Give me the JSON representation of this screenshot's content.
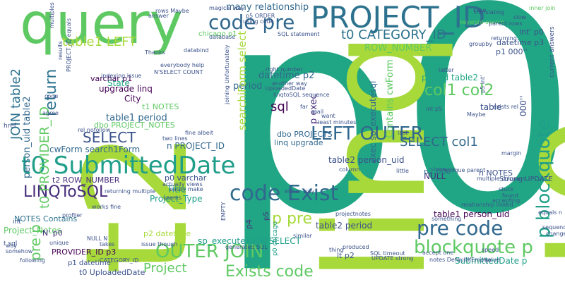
{
  "palette": {
    "green_light": "#a7d93b",
    "green": "#5ec962",
    "teal": "#21a685",
    "teal_dark": "#1f9e89",
    "blue": "#2c728e",
    "blue_dark": "#31688e",
    "indigo": "#3b528b",
    "purple": "#472d7b",
    "purple_dark": "#440154"
  },
  "words": [
    {
      "text": "p0",
      "color": "#21a685"
    },
    {
      "text": "t2",
      "color": "#a7d93b"
    },
    {
      "text": "linq",
      "color": "#a7d93b"
    },
    {
      "text": "t0",
      "color": "#a7d93b"
    },
    {
      "text": "query",
      "color": "#5ec962"
    },
    {
      "text": "PROJECT_ID",
      "color": "#2c728e"
    },
    {
      "text": "code pre",
      "color": "#31688e"
    },
    {
      "text": "t0 SubmittedDate",
      "color": "#1f9e89"
    },
    {
      "text": "code Exist",
      "color": "#31688e"
    },
    {
      "text": "LEFT OUTER",
      "color": "#31688e"
    },
    {
      "text": "OUTER JOIN",
      "color": "#5ec962"
    },
    {
      "text": "p blockquote",
      "color": "#1f9e89"
    },
    {
      "text": "pre code",
      "color": "#31688e"
    },
    {
      "text": "blockquote p",
      "color": "#5ec962"
    },
    {
      "text": "Exists code",
      "color": "#5ec962"
    },
    {
      "text": "col1 col2",
      "color": "#5ec962"
    },
    {
      "text": "p pre",
      "color": "#a7d93b"
    },
    {
      "text": "LINQToSQL",
      "color": "#472d7b"
    },
    {
      "text": "t0 CATEGORY_ID",
      "color": "#2c728e"
    },
    {
      "text": "SELECT",
      "color": "#3b528b"
    },
    {
      "text": "SELECT col1",
      "color": "#31688e"
    },
    {
      "text": "return",
      "color": "#2c728e"
    },
    {
      "text": "t0 PROVIDER_ID",
      "color": "#5ec962"
    },
    {
      "text": "JOIN table2",
      "color": "#2c728e"
    },
    {
      "text": "pre p",
      "color": "#5ec962"
    },
    {
      "text": "table1 LEFT",
      "color": "#a7d93b"
    },
    {
      "text": "Project",
      "color": "#5ec962"
    },
    {
      "text": "sql",
      "color": "#440154"
    },
    {
      "text": "City",
      "color": "#440154"
    },
    {
      "text": "table1 period",
      "color": "#31688e"
    },
    {
      "text": "State",
      "color": "#21a685"
    },
    {
      "text": "period table2",
      "color": "#21a685"
    },
    {
      "text": "cwForm search1Form",
      "color": "#31688e"
    },
    {
      "text": "n PROJECT_ID",
      "color": "#31688e"
    },
    {
      "text": "table2 person_uid",
      "color": "#3b528b"
    },
    {
      "text": "table1 person_uid",
      "color": "#440154"
    },
    {
      "text": "table2 period",
      "color": "#3b528b"
    },
    {
      "text": "SubmittedDate p",
      "color": "#1f9e89"
    },
    {
      "text": "sp_executesql N'SELECT",
      "color": "#1f9e89"
    },
    {
      "text": "Title",
      "color": "#1f9e89"
    },
    {
      "text": "Project_Type",
      "color": "#1f9e89"
    },
    {
      "text": "Project_Notes",
      "color": "#5ec962"
    },
    {
      "text": "NOTES Contains",
      "color": "#2c728e"
    },
    {
      "text": "PROVIDER_ID p3",
      "color": "#440154"
    },
    {
      "text": "dbo PROJECTS",
      "color": "#31688e"
    },
    {
      "text": "linq upgrade",
      "color": "#31688e"
    },
    {
      "text": "many relationship",
      "color": "#31688e"
    },
    {
      "text": "datetime p2",
      "color": "#31688e"
    },
    {
      "text": "period",
      "color": "#31688e"
    },
    {
      "text": "upgrade linq",
      "color": "#440154"
    },
    {
      "text": "varchar p1",
      "color": "#440154"
    },
    {
      "text": "dbo PROJECT_NOTES",
      "color": "#5ec962"
    },
    {
      "text": "t1 NOTES",
      "color": "#5ec962"
    },
    {
      "text": "p exec",
      "color": "#472d7b"
    },
    {
      "text": "exec sp_executesql",
      "color": "#31688e"
    },
    {
      "text": "Contains cwForm",
      "color": "#5ec962"
    },
    {
      "text": "ROW_NUMBER",
      "color": "#5ec962"
    },
    {
      "text": "person_uid table2",
      "color": "#31688e"
    },
    {
      "text": "searchiForm select",
      "color": "#a7d93b"
    },
    {
      "text": "p0 varchar",
      "color": "#3b528b"
    },
    {
      "text": "p1 datetime",
      "color": "#3b528b"
    },
    {
      "text": "t0 UploadedDate",
      "color": "#3b528b"
    },
    {
      "text": "p2 datetime",
      "color": "#a7d93b"
    },
    {
      "text": "t2 ROW_NUMBER",
      "color": "#472d7b"
    },
    {
      "text": "NULL",
      "color": "#472d7b"
    },
    {
      "text": "n NOTES",
      "color": "#3b528b"
    },
    {
      "text": "Strong UPDATE",
      "color": "#3b528b"
    },
    {
      "text": "p1 000''",
      "color": "#3b528b"
    },
    {
      "text": "datetime p3",
      "color": "#3b528b"
    },
    {
      "text": "int' p0",
      "color": "#3b528b"
    },
    {
      "text": "p2 000''",
      "color": "#31688e"
    },
    {
      "text": "N' p0",
      "color": "#472d7b"
    },
    {
      "text": "lt p2",
      "color": "#3b528b"
    },
    {
      "text": "p4",
      "color": "#472d7b"
    },
    {
      "text": "p5",
      "color": "#472d7b"
    },
    {
      "text": "p0 chicago",
      "color": "#1f9e89"
    },
    {
      "text": "chicago p1",
      "color": "#5ec962"
    },
    {
      "text": "keyword search",
      "color": "#5ec962"
    },
    {
      "text": "inner join",
      "color": "#5ec962"
    },
    {
      "text": "000''",
      "color": "#3b528b"
    },
    {
      "text": "current answers",
      "color": "#3b528b"
    },
    {
      "text": "relationship linked",
      "color": "#3b528b"
    },
    {
      "text": "column",
      "color": "#3b528b"
    },
    {
      "text": "table",
      "color": "#3b528b"
    },
    {
      "text": "rel nofollow",
      "color": "#3b528b"
    },
    {
      "text": "margin",
      "color": "#3b528b"
    },
    {
      "text": "code",
      "color": "#3b528b"
    },
    {
      "text": "agree",
      "color": "#3b528b"
    },
    {
      "text": "href",
      "color": "#3b528b"
    },
    {
      "text": "int",
      "color": "#3b528b"
    },
    {
      "text": "t sql",
      "color": "#3b528b"
    },
    {
      "text": "change",
      "color": "#3b528b"
    },
    {
      "text": "p5 ORDER",
      "color": "#3b528b"
    },
    {
      "text": "magical way",
      "color": "#3b528b"
    },
    {
      "text": "using code",
      "color": "#3b528b"
    },
    {
      "text": "SQL statement",
      "color": "#3b528b"
    },
    {
      "text": "database",
      "color": "#3b528b"
    },
    {
      "text": "databind",
      "color": "#3b528b"
    },
    {
      "text": "Thanks",
      "color": "#3b528b"
    },
    {
      "text": "everybody help",
      "color": "#3b528b"
    },
    {
      "text": "N'SELECT COUNT",
      "color": "#3b528b"
    },
    {
      "text": "right number",
      "color": "#3b528b"
    },
    {
      "text": "UploadedDate",
      "color": "#3b528b"
    },
    {
      "text": "another way",
      "color": "#3b528b"
    },
    {
      "text": "linqtoSQL sequence",
      "color": "#3b528b"
    },
    {
      "text": "far",
      "color": "#3b528b"
    },
    {
      "text": "mail",
      "color": "#3b528b"
    },
    {
      "text": "want",
      "color": "#3b528b"
    },
    {
      "text": "least minutes",
      "color": "#3b528b"
    },
    {
      "text": "last",
      "color": "#3b528b"
    },
    {
      "text": "indexing issue",
      "color": "#3b528b"
    },
    {
      "text": "latter",
      "color": "#3b528b"
    },
    {
      "text": "exists rel",
      "color": "#3b528b"
    },
    {
      "text": "int p5",
      "color": "#3b528b"
    },
    {
      "text": "Maybe",
      "color": "#3b528b"
    },
    {
      "text": "fine albeit",
      "color": "#3b528b"
    },
    {
      "text": "two lines",
      "color": "#3b528b"
    },
    {
      "text": "stuck",
      "color": "#3b528b"
    },
    {
      "text": "accepting",
      "color": "#3b528b"
    },
    {
      "text": "found",
      "color": "#3b528b"
    },
    {
      "text": "multiple columns",
      "color": "#3b528b"
    },
    {
      "text": "unique parent",
      "color": "#3b528b"
    },
    {
      "text": "little",
      "color": "#3b528b"
    },
    {
      "text": "actually views",
      "color": "#3b528b"
    },
    {
      "text": "easily make",
      "color": "#3b528b"
    },
    {
      "text": "seems",
      "color": "#3b528b"
    },
    {
      "text": "returning multiple",
      "color": "#3b528b"
    },
    {
      "text": "profiler",
      "color": "#3b528b"
    },
    {
      "text": "either way",
      "color": "#3b528b"
    },
    {
      "text": "similar",
      "color": "#3b528b"
    },
    {
      "text": "thing",
      "color": "#3b528b"
    },
    {
      "text": "produced",
      "color": "#3b528b"
    },
    {
      "text": "takes",
      "color": "#3b528b"
    },
    {
      "text": "unique",
      "color": "#3b528b"
    },
    {
      "text": "issue though",
      "color": "#3b528b"
    },
    {
      "text": "generated SQL",
      "color": "#3b528b"
    },
    {
      "text": "SQL timeout",
      "color": "#3b528b"
    },
    {
      "text": "UPDATE strong",
      "color": "#3b528b"
    },
    {
      "text": "notes DefaultIfEmpty",
      "color": "#3b528b"
    },
    {
      "text": "value",
      "color": "#3b528b"
    },
    {
      "text": "accept one",
      "color": "#3b528b"
    },
    {
      "text": "speed",
      "color": "#3b528b"
    },
    {
      "text": "equals n",
      "color": "#3b528b"
    },
    {
      "text": "sequence going",
      "color": "#3b528b"
    },
    {
      "text": "somehow",
      "color": "#3b528b"
    },
    {
      "text": "following",
      "color": "#3b528b"
    },
    {
      "text": "CATEGORY_ID",
      "color": "#3b528b"
    },
    {
      "text": "way",
      "color": "#3b528b"
    },
    {
      "text": "NULL N",
      "color": "#3b528b"
    },
    {
      "text": "works fine",
      "color": "#3b528b"
    },
    {
      "text": "translating",
      "color": "#3b528b"
    },
    {
      "text": "parent rows",
      "color": "#3b528b"
    },
    {
      "text": "returning",
      "color": "#3b528b"
    },
    {
      "text": "slow",
      "color": "#3b528b"
    },
    {
      "text": "case",
      "color": "#3b528b"
    },
    {
      "text": "groupby",
      "color": "#3b528b"
    },
    {
      "text": "answer",
      "color": "#3b528b"
    },
    {
      "text": "rows Maybe",
      "color": "#3b528b"
    },
    {
      "text": "multiples",
      "color": "#3b528b"
    },
    {
      "text": "results",
      "color": "#3b528b"
    },
    {
      "text": "PROJECT_ID equals",
      "color": "#3b528b"
    },
    {
      "text": "joining Unfortunately",
      "color": "#3b528b"
    },
    {
      "text": "EMPTY",
      "color": "#3b528b"
    },
    {
      "text": "tune",
      "color": "#3b528b"
    },
    {
      "text": "something",
      "color": "#3b528b"
    },
    {
      "text": "p5 int'",
      "color": "#3b528b"
    },
    {
      "text": "projectnotes",
      "color": "#3b528b"
    }
  ]
}
